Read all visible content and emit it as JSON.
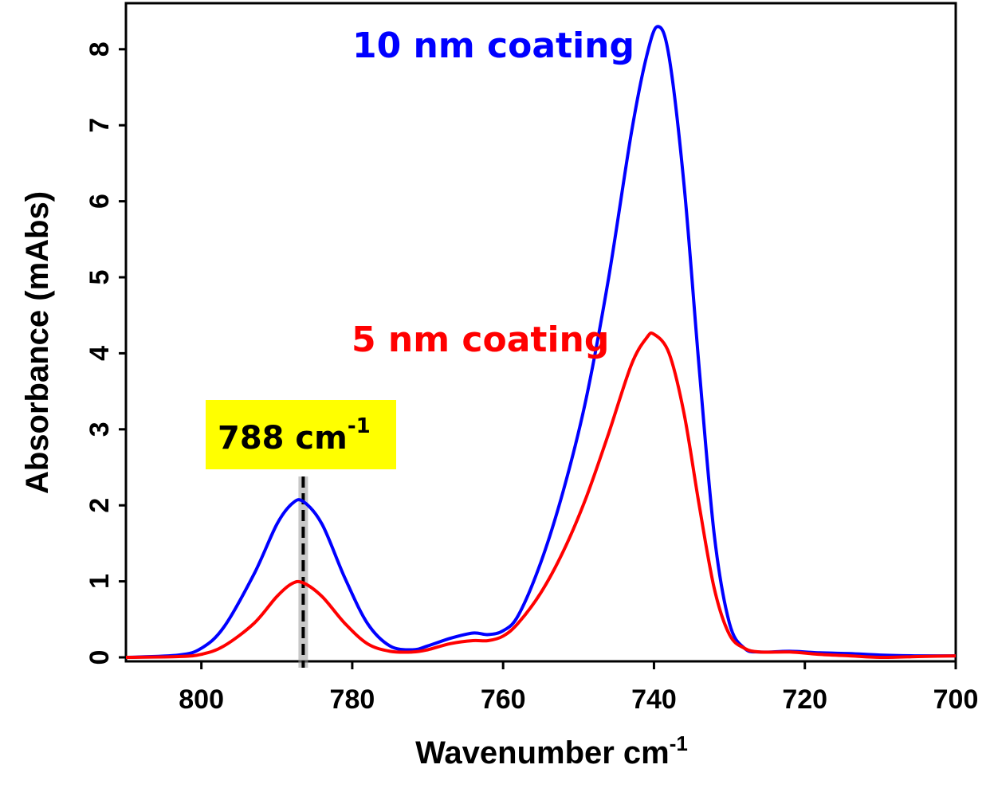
{
  "chart_data": {
    "type": "line",
    "xlabel": "Wavenumber cm",
    "xlabel_sup": "-1",
    "ylabel": "Absorbance (mAbs)",
    "xlim": [
      810,
      700
    ],
    "ylim": [
      0,
      8.5
    ],
    "xticks": [
      "800",
      "780",
      "760",
      "740",
      "720",
      "700"
    ],
    "yticks": [
      "0",
      "1",
      "2",
      "3",
      "4",
      "5",
      "6",
      "7",
      "8"
    ],
    "grid": false,
    "series": [
      {
        "name": "10 nm coating",
        "color": "#0000FF",
        "x": [
          810,
          803,
          800,
          797,
          793,
          790,
          788,
          786.5,
          784,
          781,
          778,
          775,
          772,
          770,
          767,
          764,
          762,
          760,
          758,
          755,
          752,
          749,
          746,
          743,
          741,
          739.5,
          738,
          736,
          734,
          732,
          730,
          728,
          726,
          722,
          718,
          714,
          710,
          705,
          700
        ],
        "y": [
          0,
          0.03,
          0.12,
          0.4,
          1.1,
          1.75,
          2.02,
          2.05,
          1.75,
          1.05,
          0.45,
          0.15,
          0.1,
          0.15,
          0.25,
          0.32,
          0.3,
          0.35,
          0.55,
          1.25,
          2.2,
          3.4,
          5.0,
          6.9,
          7.9,
          8.3,
          7.9,
          6.2,
          3.8,
          1.6,
          0.45,
          0.12,
          0.07,
          0.08,
          0.06,
          0.05,
          0.03,
          0.02,
          0.02
        ]
      },
      {
        "name": "5 nm coating",
        "color": "#FF0000",
        "x": [
          810,
          803,
          800,
          797,
          793,
          790,
          788,
          786.5,
          784,
          781,
          778,
          775,
          772,
          770,
          767,
          764,
          762,
          760,
          758,
          755,
          752,
          749,
          746,
          743,
          741,
          740,
          738,
          736,
          734,
          732,
          730,
          728,
          726,
          722,
          718,
          714,
          710,
          705,
          700
        ],
        "y": [
          0,
          0.01,
          0.04,
          0.15,
          0.45,
          0.8,
          0.97,
          0.98,
          0.8,
          0.45,
          0.18,
          0.08,
          0.07,
          0.1,
          0.18,
          0.22,
          0.22,
          0.28,
          0.45,
          0.85,
          1.4,
          2.1,
          2.95,
          3.85,
          4.2,
          4.25,
          4.0,
          3.2,
          2.0,
          0.9,
          0.3,
          0.12,
          0.07,
          0.07,
          0.04,
          0.02,
          0.0,
          0.01,
          0.02
        ]
      }
    ],
    "annotations": [
      {
        "text": "788 cm",
        "sup": "-1",
        "x": 786.5,
        "style": "dashed-vertical-line",
        "box_color": "#FFFF00"
      }
    ]
  }
}
